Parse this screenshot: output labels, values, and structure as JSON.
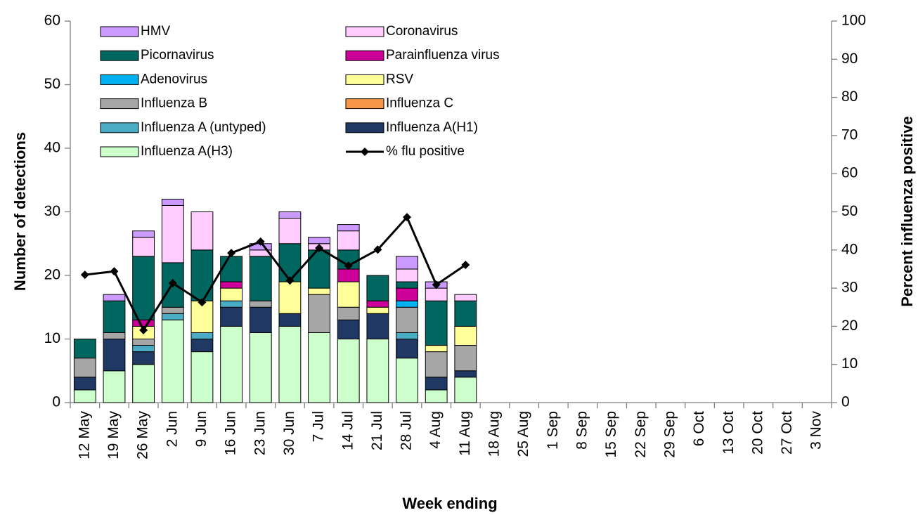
{
  "chart_data": {
    "type": "bar",
    "stacked": true,
    "x_label": "Week ending",
    "y_label": "Number of detections",
    "y2_label": "Percent influenza positive",
    "categories": [
      "12 May",
      "19 May",
      "26 May",
      "2 Jun",
      "9 Jun",
      "16 Jun",
      "23 Jun",
      "30 Jun",
      "7 Jul",
      "14 Jul",
      "21 Jul",
      "28 Jul",
      "4 Aug",
      "11 Aug",
      "18 Aug",
      "25 Aug",
      "1 Sep",
      "8 Sep",
      "15 Sep",
      "22 Sep",
      "29 Sep",
      "6 Oct",
      "13 Oct",
      "20 Oct",
      "27 Oct",
      "3 Nov"
    ],
    "ylim": [
      0,
      60
    ],
    "yticks": [
      0,
      10,
      20,
      30,
      40,
      50,
      60
    ],
    "y2lim": [
      0,
      100
    ],
    "y2ticks": [
      0,
      10,
      20,
      30,
      40,
      50,
      60,
      70,
      80,
      90,
      100
    ],
    "series": [
      {
        "name": "Influenza A(H3)",
        "color": "#ccffcc",
        "values": [
          2,
          5,
          6,
          13,
          8,
          12,
          11,
          12,
          11,
          10,
          10,
          7,
          2,
          4,
          null,
          null,
          null,
          null,
          null,
          null,
          null,
          null,
          null,
          null,
          null,
          null
        ]
      },
      {
        "name": "Influenza A(H1)",
        "color": "#1f3864",
        "values": [
          2,
          5,
          2,
          0,
          2,
          3,
          4,
          2,
          0,
          3,
          4,
          3,
          2,
          1,
          null,
          null,
          null,
          null,
          null,
          null,
          null,
          null,
          null,
          null,
          null,
          null
        ]
      },
      {
        "name": "Influenza A (untyped)",
        "color": "#4bacc6",
        "values": [
          0,
          0,
          1,
          1,
          1,
          1,
          0,
          0,
          0,
          0,
          0,
          1,
          0,
          0,
          null,
          null,
          null,
          null,
          null,
          null,
          null,
          null,
          null,
          null,
          null,
          null
        ]
      },
      {
        "name": "Influenza C",
        "color": "#f79646",
        "values": [
          0,
          0,
          0,
          0,
          0,
          0,
          0,
          0,
          0,
          0,
          0,
          0,
          0,
          0,
          null,
          null,
          null,
          null,
          null,
          null,
          null,
          null,
          null,
          null,
          null,
          null
        ]
      },
      {
        "name": "Influenza B",
        "color": "#a6a6a6",
        "values": [
          3,
          1,
          1,
          1,
          0,
          0,
          1,
          0,
          6,
          2,
          0,
          4,
          4,
          4,
          null,
          null,
          null,
          null,
          null,
          null,
          null,
          null,
          null,
          null,
          null,
          null
        ]
      },
      {
        "name": "RSV",
        "color": "#ffff99",
        "values": [
          0,
          0,
          2,
          0,
          5,
          2,
          0,
          5,
          1,
          4,
          1,
          0,
          1,
          3,
          null,
          null,
          null,
          null,
          null,
          null,
          null,
          null,
          null,
          null,
          null,
          null
        ]
      },
      {
        "name": "Adenovirus",
        "color": "#00b0f0",
        "values": [
          0,
          0,
          0,
          0,
          0,
          0,
          0,
          0,
          0,
          0,
          0,
          1,
          0,
          0,
          null,
          null,
          null,
          null,
          null,
          null,
          null,
          null,
          null,
          null,
          null,
          null
        ]
      },
      {
        "name": "Parainfluenza virus",
        "color": "#cc0099",
        "values": [
          0,
          0,
          1,
          0,
          0,
          1,
          0,
          0,
          0,
          2,
          1,
          2,
          0,
          0,
          null,
          null,
          null,
          null,
          null,
          null,
          null,
          null,
          null,
          null,
          null,
          null
        ]
      },
      {
        "name": "Picornavirus",
        "color": "#006660",
        "values": [
          3,
          5,
          10,
          7,
          8,
          4,
          7,
          6,
          6,
          3,
          4,
          1,
          7,
          4,
          null,
          null,
          null,
          null,
          null,
          null,
          null,
          null,
          null,
          null,
          null,
          null
        ]
      },
      {
        "name": "Coronavirus",
        "color": "#ffccff",
        "values": [
          0,
          0,
          3,
          9,
          6,
          0,
          1,
          4,
          1,
          3,
          0,
          2,
          2,
          1,
          null,
          null,
          null,
          null,
          null,
          null,
          null,
          null,
          null,
          null,
          null,
          null
        ]
      },
      {
        "name": "HMV",
        "color": "#cc99ff",
        "values": [
          0,
          1,
          1,
          1,
          0,
          0,
          1,
          1,
          1,
          1,
          0,
          2,
          1,
          0,
          null,
          null,
          null,
          null,
          null,
          null,
          null,
          null,
          null,
          null,
          null,
          null
        ]
      },
      {
        "name": "% flu positive",
        "color": "#000000",
        "type": "line",
        "axis": "y2",
        "values": [
          33.5,
          34.4,
          19,
          31.3,
          26.3,
          39.2,
          42.2,
          32,
          40.5,
          35.9,
          40.1,
          48.6,
          30.9,
          36.1,
          null,
          null,
          null,
          null,
          null,
          null,
          null,
          null,
          null,
          null,
          null,
          null
        ]
      }
    ]
  }
}
